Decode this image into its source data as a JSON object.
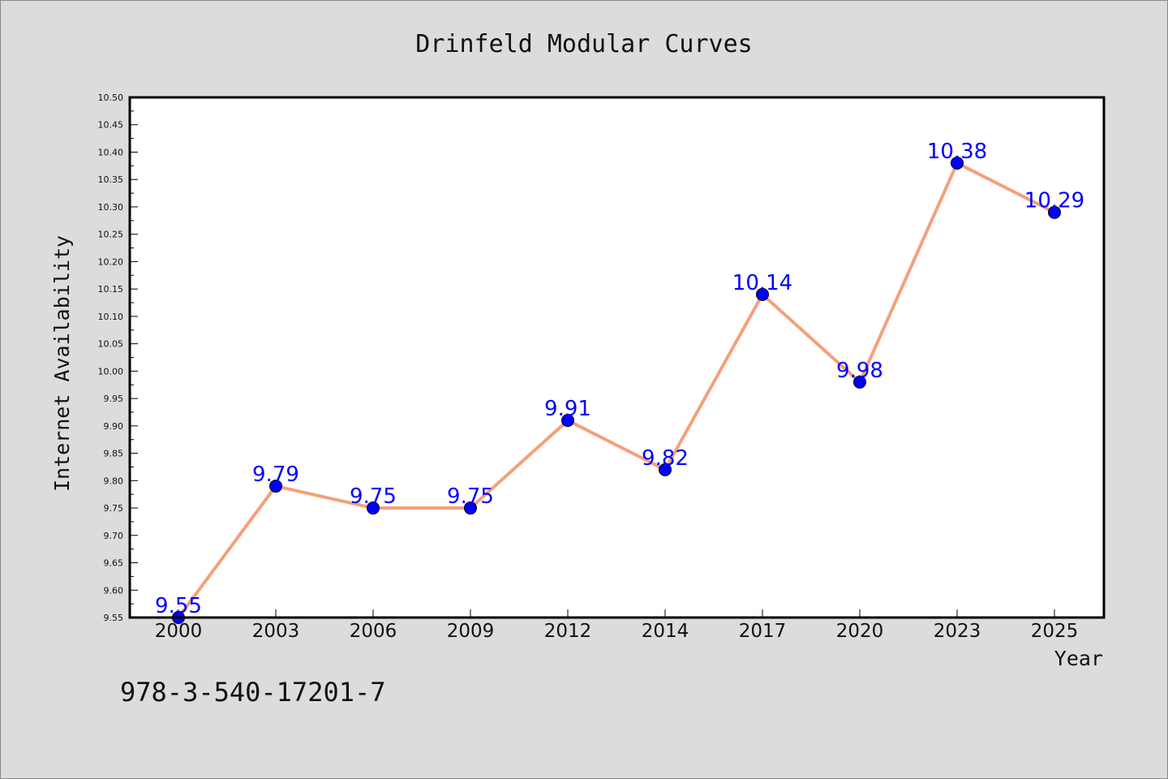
{
  "chart_data": {
    "type": "line",
    "title": "Drinfeld Modular Curves",
    "xlabel": "Year",
    "ylabel": "Internet Availability",
    "categories": [
      "2000",
      "2003",
      "2006",
      "2009",
      "2012",
      "2014",
      "2017",
      "2020",
      "2023",
      "2025"
    ],
    "series": [
      {
        "values": [
          9.55,
          9.79,
          9.75,
          9.75,
          9.91,
          9.82,
          10.14,
          9.98,
          10.38,
          10.29
        ],
        "line_color": "#f4a07a",
        "marker_color": "#0000ff"
      }
    ],
    "data_labels": [
      "9.55",
      "9.79",
      "9.75",
      "9.75",
      "9.91",
      "9.82",
      "10.14",
      "9.98",
      "10.38",
      "10.29"
    ],
    "ylim": [
      9.55,
      10.5
    ],
    "yticks": [
      "9.55",
      "9.60",
      "9.65",
      "9.70",
      "9.75",
      "9.80",
      "9.85",
      "9.90",
      "9.95",
      "10.00",
      "10.05",
      "10.10",
      "10.15",
      "10.20",
      "10.25",
      "10.30",
      "10.35",
      "10.40",
      "10.45",
      "10.50"
    ],
    "label_color": "#0000ff",
    "grid": false,
    "legend": "none"
  },
  "annotation": "978-3-540-17201-7"
}
